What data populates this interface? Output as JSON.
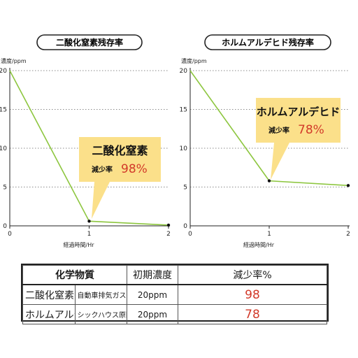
{
  "chart_data": [
    {
      "type": "line",
      "title": "二酸化窒素残存率",
      "ylabel": "濃度/ppm",
      "xlabel": "経過時間/Hr",
      "x": [
        0,
        1,
        2
      ],
      "series": [
        {
          "values": [
            20,
            0.6,
            0.1
          ]
        }
      ],
      "xlim": [
        0,
        2
      ],
      "ylim": [
        0,
        20
      ],
      "xticks": [
        "0",
        "1",
        "2"
      ],
      "yticks": [
        "0",
        "5",
        "10",
        "15",
        "20"
      ],
      "grid": "horizontal dotted",
      "line_color": "#8dc63f",
      "callout": {
        "name": "二酸化窒素",
        "label": "減少率",
        "value": "98%",
        "fill": "#fbe08a"
      }
    },
    {
      "type": "line",
      "title": "ホルムアルデヒド残存率",
      "ylabel": "濃度/ppm",
      "xlabel": "経過時間/Hr",
      "x": [
        0,
        1,
        2
      ],
      "series": [
        {
          "values": [
            20,
            5.8,
            5.2
          ]
        }
      ],
      "xlim": [
        0,
        2
      ],
      "ylim": [
        0,
        20
      ],
      "xticks": [
        "0",
        "1",
        "2"
      ],
      "yticks": [
        "0",
        "5",
        "10",
        "15",
        "20"
      ],
      "grid": "horizontal dotted",
      "line_color": "#8dc63f",
      "callout": {
        "name": "ホルムアルデヒド",
        "label": "減少率",
        "value": "78%",
        "fill": "#fbe08a"
      }
    }
  ],
  "summary_table": {
    "headers": [
      "化学物質",
      "初期濃度",
      "減少率%"
    ],
    "rows": [
      {
        "name": "二酸化窒素",
        "source": "自動車排気ガス, 喘息の原因",
        "initial": "20ppm",
        "reduction": "98"
      },
      {
        "name": "ホルムアルデヒド",
        "source": "シックハウス原因物質",
        "initial": "20ppm",
        "reduction": "78"
      }
    ]
  }
}
